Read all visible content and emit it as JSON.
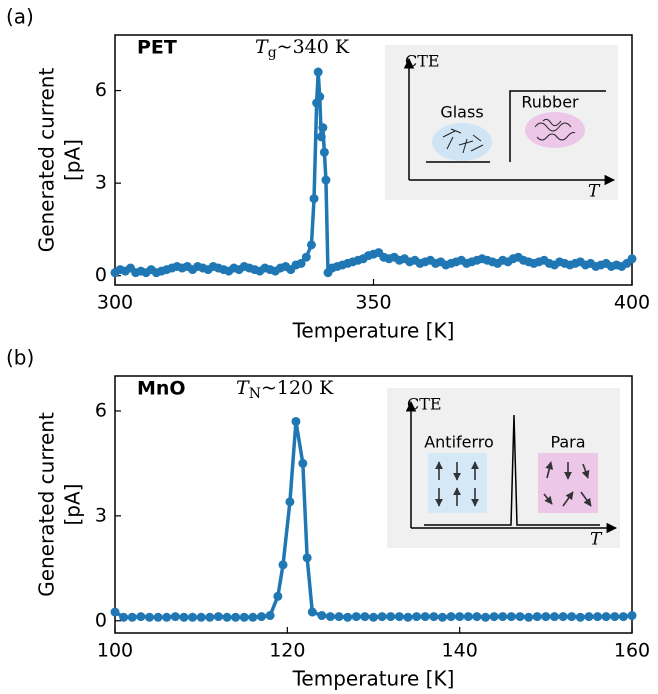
{
  "chart_data": [
    {
      "type": "line",
      "panel": "(a)",
      "label": "PET",
      "annotation": {
        "symbol": "T",
        "subscript": "g",
        "text": "~340 K"
      },
      "xlabel": "Temperature [K]",
      "ylabel": [
        "Generated current",
        "[pA]"
      ],
      "xlim": [
        300,
        400
      ],
      "xticks": [
        300,
        350,
        400
      ],
      "ylim": [
        -0.3,
        7.8
      ],
      "yticks": [
        0,
        3,
        6
      ],
      "inset": {
        "ylabel": "CTE",
        "xlabel": "T",
        "phases": [
          "Glass",
          "Rubber"
        ]
      },
      "series": [
        {
          "color": "#1f77b4",
          "x": [
            300,
            301,
            302,
            303,
            304,
            305,
            306,
            307,
            308,
            309,
            310,
            311,
            312,
            313,
            314,
            315,
            316,
            317,
            318,
            319,
            320,
            321,
            322,
            323,
            324,
            325,
            326,
            327,
            328,
            329,
            330,
            331,
            332,
            333,
            334,
            335,
            336,
            337,
            338,
            338.5,
            339,
            339.3,
            339.6,
            339.9,
            340.2,
            340.5,
            340.8,
            341.2,
            342,
            343,
            344,
            345,
            346,
            347,
            348,
            349,
            350,
            351,
            352,
            353,
            354,
            355,
            356,
            357,
            358,
            359,
            360,
            361,
            362,
            363,
            364,
            365,
            366,
            367,
            368,
            369,
            370,
            371,
            372,
            373,
            374,
            375,
            376,
            377,
            378,
            379,
            380,
            381,
            382,
            383,
            384,
            385,
            386,
            387,
            388,
            389,
            390,
            391,
            392,
            393,
            394,
            395,
            396,
            397,
            398,
            399,
            400
          ],
          "values": [
            0.1,
            0.2,
            0.15,
            0.25,
            0.1,
            0.15,
            0.1,
            0.2,
            0.1,
            0.15,
            0.2,
            0.25,
            0.3,
            0.25,
            0.3,
            0.2,
            0.3,
            0.25,
            0.2,
            0.3,
            0.25,
            0.2,
            0.15,
            0.25,
            0.2,
            0.3,
            0.25,
            0.2,
            0.15,
            0.25,
            0.2,
            0.15,
            0.25,
            0.3,
            0.2,
            0.35,
            0.4,
            0.6,
            1.0,
            2.5,
            5.6,
            6.6,
            5.8,
            4.5,
            4.8,
            4.0,
            3.1,
            0.1,
            0.25,
            0.3,
            0.35,
            0.4,
            0.45,
            0.5,
            0.55,
            0.65,
            0.7,
            0.75,
            0.6,
            0.55,
            0.6,
            0.5,
            0.55,
            0.45,
            0.5,
            0.4,
            0.45,
            0.5,
            0.4,
            0.45,
            0.35,
            0.4,
            0.45,
            0.5,
            0.4,
            0.45,
            0.5,
            0.55,
            0.5,
            0.45,
            0.4,
            0.5,
            0.45,
            0.55,
            0.6,
            0.5,
            0.45,
            0.4,
            0.45,
            0.5,
            0.4,
            0.35,
            0.45,
            0.4,
            0.35,
            0.4,
            0.45,
            0.35,
            0.4,
            0.3,
            0.35,
            0.4,
            0.3,
            0.35,
            0.3,
            0.4,
            0.55
          ]
        }
      ]
    },
    {
      "type": "line",
      "panel": "(b)",
      "label": "MnO",
      "annotation": {
        "symbol": "T",
        "subscript": "N",
        "text": "~120 K"
      },
      "xlabel": "Temperature [K]",
      "ylabel": [
        "Generated current",
        "[pA]"
      ],
      "xlim": [
        100,
        160
      ],
      "xticks": [
        100,
        120,
        140,
        160
      ],
      "ylim": [
        -0.35,
        7.0
      ],
      "yticks": [
        0,
        3,
        6
      ],
      "inset": {
        "ylabel": "CTE",
        "xlabel": "T",
        "phases": [
          "Antiferro",
          "Para"
        ]
      },
      "series": [
        {
          "color": "#1f77b4",
          "x": [
            100,
            101,
            102,
            103,
            104,
            105,
            106,
            107,
            108,
            109,
            110,
            111,
            112,
            113,
            114,
            115,
            116,
            117,
            118,
            118.9,
            119.5,
            120.3,
            121,
            121.8,
            122.3,
            122.9,
            124,
            125,
            126,
            127,
            128,
            129,
            130,
            131,
            132,
            133,
            134,
            135,
            136,
            137,
            138,
            139,
            140,
            141,
            142,
            143,
            144,
            145,
            146,
            147,
            148,
            149,
            150,
            151,
            152,
            153,
            154,
            155,
            156,
            157,
            158,
            159,
            160
          ],
          "values": [
            0.25,
            0.1,
            0.1,
            0.12,
            0.1,
            0.1,
            0.1,
            0.12,
            0.1,
            0.1,
            0.1,
            0.1,
            0.12,
            0.1,
            0.1,
            0.1,
            0.1,
            0.12,
            0.15,
            0.7,
            1.6,
            3.4,
            5.7,
            4.5,
            1.8,
            0.25,
            0.15,
            0.12,
            0.12,
            0.1,
            0.12,
            0.12,
            0.1,
            0.12,
            0.12,
            0.12,
            0.1,
            0.12,
            0.12,
            0.12,
            0.1,
            0.12,
            0.12,
            0.12,
            0.12,
            0.1,
            0.12,
            0.12,
            0.12,
            0.12,
            0.1,
            0.12,
            0.12,
            0.12,
            0.12,
            0.12,
            0.1,
            0.12,
            0.12,
            0.12,
            0.12,
            0.12,
            0.15
          ]
        }
      ]
    }
  ]
}
